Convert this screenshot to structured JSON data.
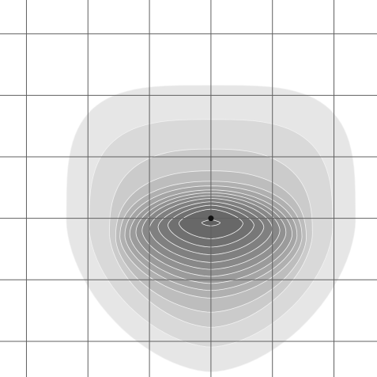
{
  "chart_data": {
    "type": "contour",
    "title": "",
    "xlabel": "",
    "ylabel": "",
    "axes_visible": false,
    "grid": true,
    "grid_lines_x": [
      -2.5,
      -1.5,
      -0.5,
      0.5,
      1.5,
      2.5
    ],
    "grid_lines_y": [
      -2.5,
      -1.5,
      -0.5,
      0.5,
      1.5,
      2.5
    ],
    "xlim": [
      -2.93,
      3.2
    ],
    "ylim": [
      -3.08,
      3.05
    ],
    "marker": {
      "x": 0.5,
      "y": -0.5,
      "color": "#111111"
    },
    "contour_center": {
      "x": 0.5,
      "y": -0.2
    },
    "colors": {
      "grid": "#606060",
      "levels": [
        "#e6e6e6",
        "#d9d9d9",
        "#cbcbcb",
        "#bdbdbd",
        "#b0b0b0",
        "#a5a5a5",
        "#9b9b9b",
        "#919191",
        "#888888",
        "#808080",
        "#787878",
        "#707070",
        "#686868",
        "#606060"
      ],
      "level_edge": "#f2f2f2"
    },
    "levels": [
      {
        "rx": 2.35,
        "ry": 2.33,
        "dy": -0.35,
        "top_flat": 0.85,
        "bottom_round": 0.35
      },
      {
        "rx": 1.98,
        "ry": 1.85,
        "dy": -0.45,
        "top_flat": 0.7,
        "bottom_round": 0.35
      },
      {
        "rx": 1.65,
        "ry": 1.45,
        "dy": -0.55,
        "top_flat": 0.55,
        "bottom_round": 0.35
      },
      {
        "rx": 1.55,
        "ry": 1.15,
        "dy": -0.62,
        "top_flat": 0.45,
        "bottom_round": 0.35
      },
      {
        "rx": 1.48,
        "ry": 0.95,
        "dy": -0.6,
        "top_flat": 0.4,
        "bottom_round": 0.35
      },
      {
        "rx": 1.4,
        "ry": 0.85,
        "dy": -0.58,
        "top_flat": 0.36,
        "bottom_round": 0.35
      },
      {
        "rx": 1.32,
        "ry": 0.76,
        "dy": -0.56,
        "top_flat": 0.32,
        "bottom_round": 0.35
      },
      {
        "rx": 1.22,
        "ry": 0.68,
        "dy": -0.53,
        "top_flat": 0.3,
        "bottom_round": 0.35
      },
      {
        "rx": 1.12,
        "ry": 0.6,
        "dy": -0.5,
        "top_flat": 0.28,
        "bottom_round": 0.35
      },
      {
        "rx": 1.0,
        "ry": 0.52,
        "dy": -0.47,
        "top_flat": 0.25,
        "bottom_round": 0.35
      },
      {
        "rx": 0.86,
        "ry": 0.43,
        "dy": -0.44,
        "top_flat": 0.22,
        "bottom_round": 0.35
      },
      {
        "rx": 0.7,
        "ry": 0.34,
        "dy": -0.41,
        "top_flat": 0.2,
        "bottom_round": 0.35
      },
      {
        "rx": 0.52,
        "ry": 0.24,
        "dy": -0.38,
        "top_flat": 0.18,
        "bottom_round": 0.35
      },
      {
        "rx": 0.15,
        "ry": 0.05,
        "dy": -0.37,
        "top_flat": 0.1,
        "bottom_round": 0.35
      }
    ]
  }
}
